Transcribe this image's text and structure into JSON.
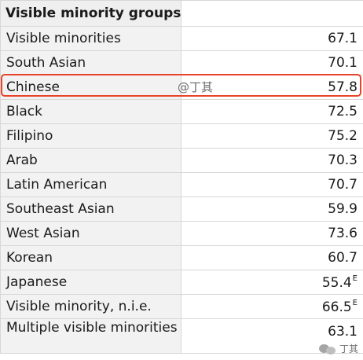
{
  "table": {
    "header": "Visible minority groups",
    "rows": [
      {
        "label": "Visible minorities",
        "value": "67.1",
        "flag": ""
      },
      {
        "label": "South Asian",
        "value": "70.1",
        "flag": ""
      },
      {
        "label": "Chinese",
        "value": "57.8",
        "flag": ""
      },
      {
        "label": "Black",
        "value": "72.5",
        "flag": ""
      },
      {
        "label": "Filipino",
        "value": "75.2",
        "flag": ""
      },
      {
        "label": "Arab",
        "value": "70.3",
        "flag": ""
      },
      {
        "label": "Latin American",
        "value": "70.7",
        "flag": ""
      },
      {
        "label": "Southeast Asian",
        "value": "59.9",
        "flag": ""
      },
      {
        "label": "West Asian",
        "value": "73.6",
        "flag": ""
      },
      {
        "label": "Korean",
        "value": "60.7",
        "flag": ""
      },
      {
        "label": "Japanese",
        "value": "55.4",
        "flag": "E"
      },
      {
        "label": "Visible minority, n.i.e.",
        "value": "66.5",
        "flag": "E"
      },
      {
        "label": "Multiple visible minorities",
        "value": "63.1",
        "flag": ""
      }
    ]
  },
  "highlight": {
    "row_label": "Chinese",
    "color": "#e8442a"
  },
  "watermarks": {
    "top": "@丁其",
    "bottom": "丁其"
  },
  "colors": {
    "label_bg": "#f2f2f2",
    "header_bg": "#efefef",
    "border": "#d7d7d7"
  }
}
